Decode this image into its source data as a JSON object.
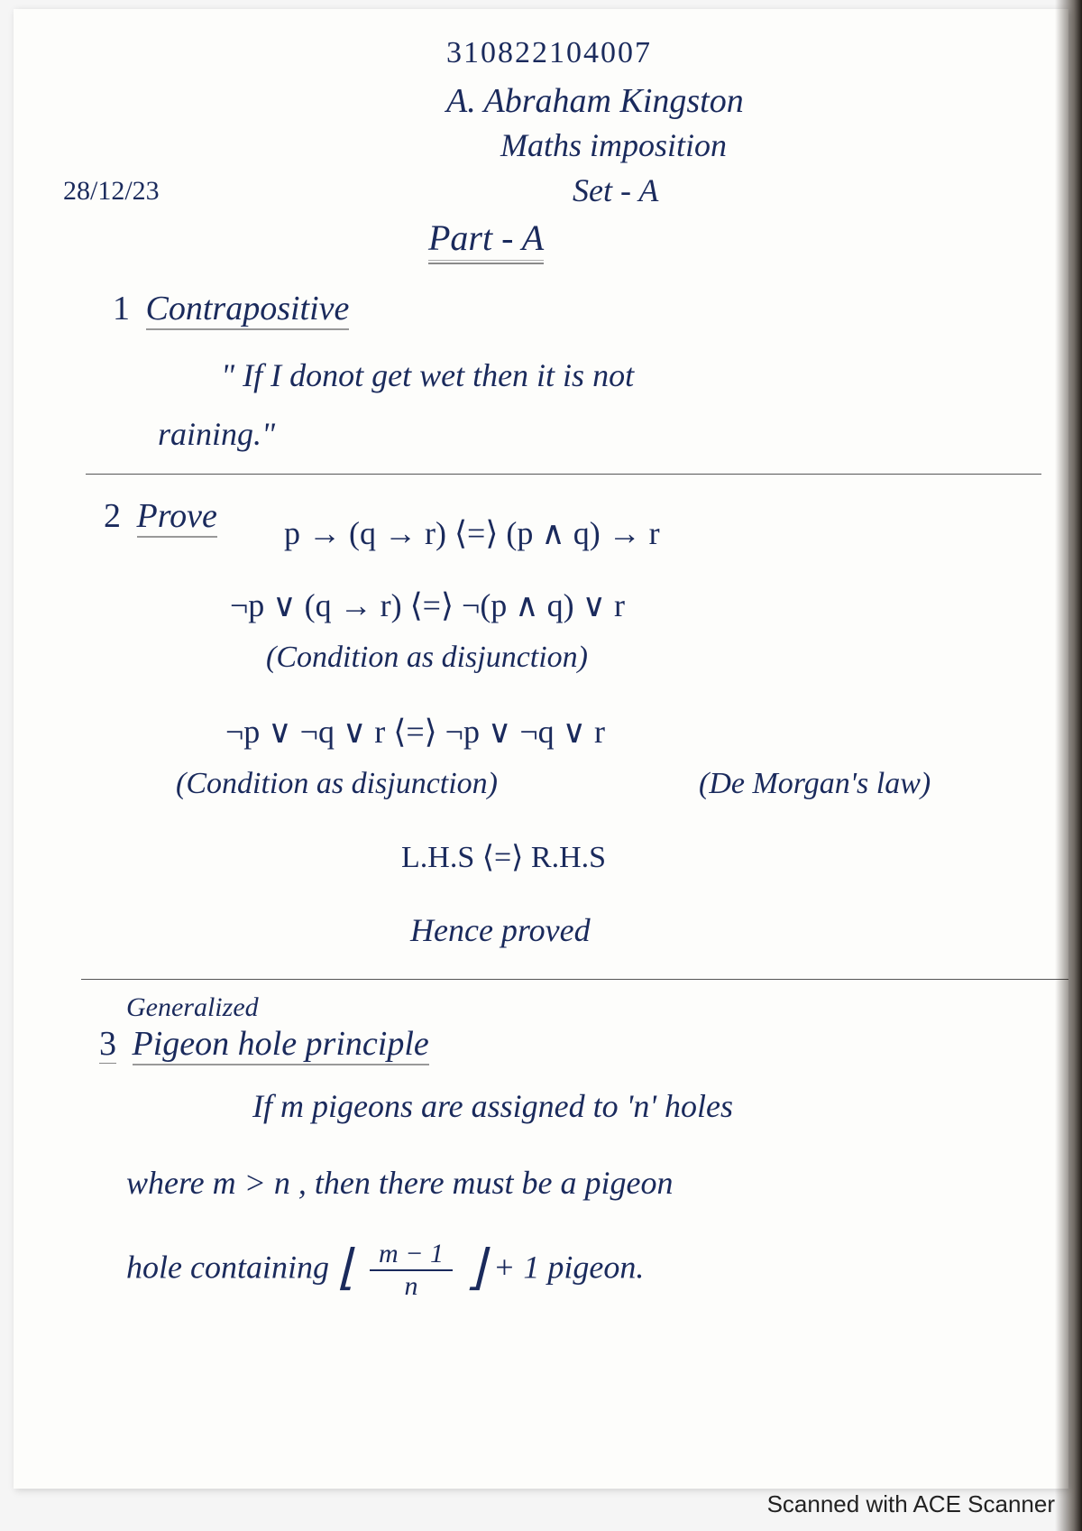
{
  "header": {
    "id": "310822104007",
    "name": "A. Abraham Kingston",
    "subject": "Maths imposition",
    "set": "Set - A",
    "date": "28/12/23"
  },
  "part_title": "Part - A",
  "q1": {
    "num": "1",
    "heading": "Contrapositive",
    "line1": "\" If I donot get wet then it is not",
    "line2": "raining.\""
  },
  "q2": {
    "num": "2",
    "heading": "Prove",
    "line1": "p → (q → r)  ⟨=⟩  (p ∧ q) → r",
    "line2": "¬p ∨ (q → r)  ⟨=⟩  ¬(p ∧ q) ∨ r",
    "line2_note": "(Condition as disjunction)",
    "line3": "¬p ∨ ¬q ∨ r  ⟨=⟩  ¬p ∨ ¬q ∨ r",
    "line3_note_left": "(Condition as disjunction)",
    "line3_note_right": "(De Morgan's law)",
    "line4": "L.H.S ⟨=⟩ R.H.S",
    "line5": "Hence proved"
  },
  "q3": {
    "gen": "Generalized",
    "num": "3",
    "heading": "Pigeon hole principle",
    "line1": "If m pigeons are assigned to 'n' holes",
    "line2": "where m > n , then there must be a pigeon",
    "line3_pre": "hole containing",
    "frac_top": "m − 1",
    "frac_bot": "n",
    "line3_post": "+ 1 pigeon."
  },
  "footer": "Scanned with ACE Scanner"
}
